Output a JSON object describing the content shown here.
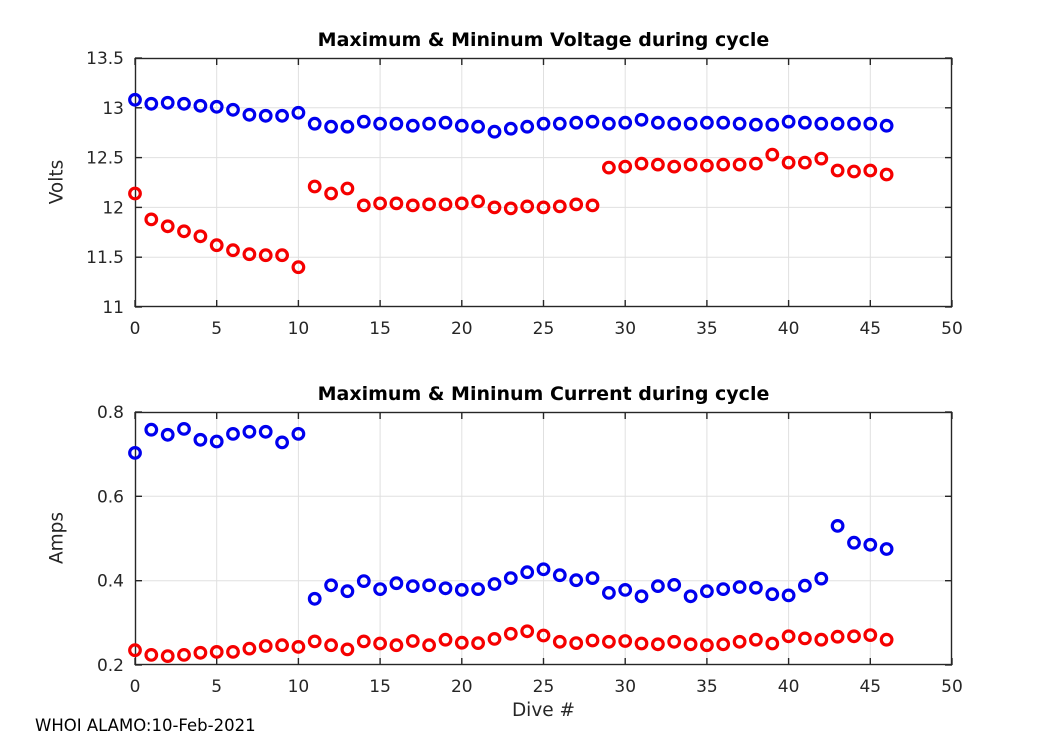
{
  "figure": {
    "footer_text": "WHOI ALAMO:10-Feb-2021"
  },
  "style": {
    "background": "#ffffff",
    "grid_color": "#e0e0e0",
    "axis_color": "#262626",
    "tick_label_color": "#262626",
    "max_series_color": "#0000ee",
    "min_series_color": "#f50000"
  },
  "chart_data": [
    {
      "id": "voltage",
      "type": "scatter",
      "title": "Maximum & Mininum Voltage during cycle",
      "xlabel": "",
      "ylabel": "Volts",
      "xlim": [
        0,
        50
      ],
      "ylim": [
        11,
        13.5
      ],
      "xticks": [
        0,
        5,
        10,
        15,
        20,
        25,
        30,
        35,
        40,
        45,
        50
      ],
      "yticks": [
        11,
        11.5,
        12,
        12.5,
        13,
        13.5
      ],
      "grid": true,
      "marker": "open-circle",
      "legend": "none",
      "x": [
        0,
        1,
        2,
        3,
        4,
        5,
        6,
        7,
        8,
        9,
        10,
        11,
        12,
        13,
        14,
        15,
        16,
        17,
        18,
        19,
        20,
        21,
        22,
        23,
        24,
        25,
        26,
        27,
        28,
        29,
        30,
        31,
        32,
        33,
        34,
        35,
        36,
        37,
        38,
        39,
        40,
        41,
        42,
        43,
        44,
        45,
        46
      ],
      "series": [
        {
          "name": "max_voltage",
          "color": "#0000ee",
          "values": [
            13.08,
            13.04,
            13.05,
            13.04,
            13.02,
            13.01,
            12.98,
            12.93,
            12.92,
            12.92,
            12.95,
            12.84,
            12.81,
            12.81,
            12.86,
            12.84,
            12.84,
            12.82,
            12.84,
            12.85,
            12.82,
            12.81,
            12.76,
            12.79,
            12.81,
            12.84,
            12.84,
            12.85,
            12.86,
            12.84,
            12.85,
            12.88,
            12.85,
            12.84,
            12.84,
            12.85,
            12.85,
            12.84,
            12.83,
            12.83,
            12.86,
            12.85,
            12.84,
            12.84,
            12.84,
            12.84,
            12.82
          ]
        },
        {
          "name": "min_voltage",
          "color": "#f50000",
          "values": [
            12.14,
            11.88,
            11.81,
            11.76,
            11.71,
            11.62,
            11.57,
            11.53,
            11.52,
            11.52,
            11.4,
            12.21,
            12.14,
            12.19,
            12.02,
            12.04,
            12.04,
            12.02,
            12.03,
            12.03,
            12.04,
            12.06,
            12.0,
            11.99,
            12.01,
            12.0,
            12.01,
            12.03,
            12.02,
            12.4,
            12.41,
            12.44,
            12.43,
            12.41,
            12.43,
            12.42,
            12.43,
            12.43,
            12.44,
            12.53,
            12.45,
            12.45,
            12.49,
            12.37,
            12.36,
            12.37,
            12.33
          ]
        }
      ]
    },
    {
      "id": "current",
      "type": "scatter",
      "title": "Maximum & Mininum Current during cycle",
      "xlabel": "Dive #",
      "ylabel": "Amps",
      "xlim": [
        0,
        50
      ],
      "ylim": [
        0.2,
        0.8
      ],
      "xticks": [
        0,
        5,
        10,
        15,
        20,
        25,
        30,
        35,
        40,
        45,
        50
      ],
      "yticks": [
        0.2,
        0.4,
        0.6,
        0.8
      ],
      "grid": true,
      "marker": "open-circle",
      "legend": "none",
      "x": [
        0,
        1,
        2,
        3,
        4,
        5,
        6,
        7,
        8,
        9,
        10,
        11,
        12,
        13,
        14,
        15,
        16,
        17,
        18,
        19,
        20,
        21,
        22,
        23,
        24,
        25,
        26,
        27,
        28,
        29,
        30,
        31,
        32,
        33,
        34,
        35,
        36,
        37,
        38,
        39,
        40,
        41,
        42,
        43,
        44,
        45,
        46
      ],
      "series": [
        {
          "name": "max_current",
          "color": "#0000ee",
          "values": [
            0.703,
            0.758,
            0.746,
            0.76,
            0.734,
            0.73,
            0.748,
            0.753,
            0.753,
            0.728,
            0.748,
            0.357,
            0.389,
            0.375,
            0.399,
            0.38,
            0.394,
            0.387,
            0.389,
            0.382,
            0.378,
            0.38,
            0.392,
            0.406,
            0.42,
            0.427,
            0.413,
            0.401,
            0.406,
            0.371,
            0.378,
            0.363,
            0.387,
            0.39,
            0.363,
            0.375,
            0.38,
            0.385,
            0.383,
            0.368,
            0.365,
            0.388,
            0.405,
            0.53,
            0.49,
            0.485,
            0.475
          ]
        },
        {
          "name": "min_current",
          "color": "#f50000",
          "values": [
            0.235,
            0.224,
            0.221,
            0.224,
            0.229,
            0.231,
            0.231,
            0.239,
            0.245,
            0.247,
            0.243,
            0.256,
            0.247,
            0.237,
            0.256,
            0.251,
            0.247,
            0.257,
            0.247,
            0.26,
            0.253,
            0.252,
            0.262,
            0.274,
            0.28,
            0.27,
            0.255,
            0.252,
            0.258,
            0.255,
            0.257,
            0.251,
            0.249,
            0.255,
            0.249,
            0.247,
            0.249,
            0.255,
            0.26,
            0.251,
            0.268,
            0.263,
            0.26,
            0.267,
            0.268,
            0.271,
            0.26
          ]
        }
      ]
    }
  ]
}
